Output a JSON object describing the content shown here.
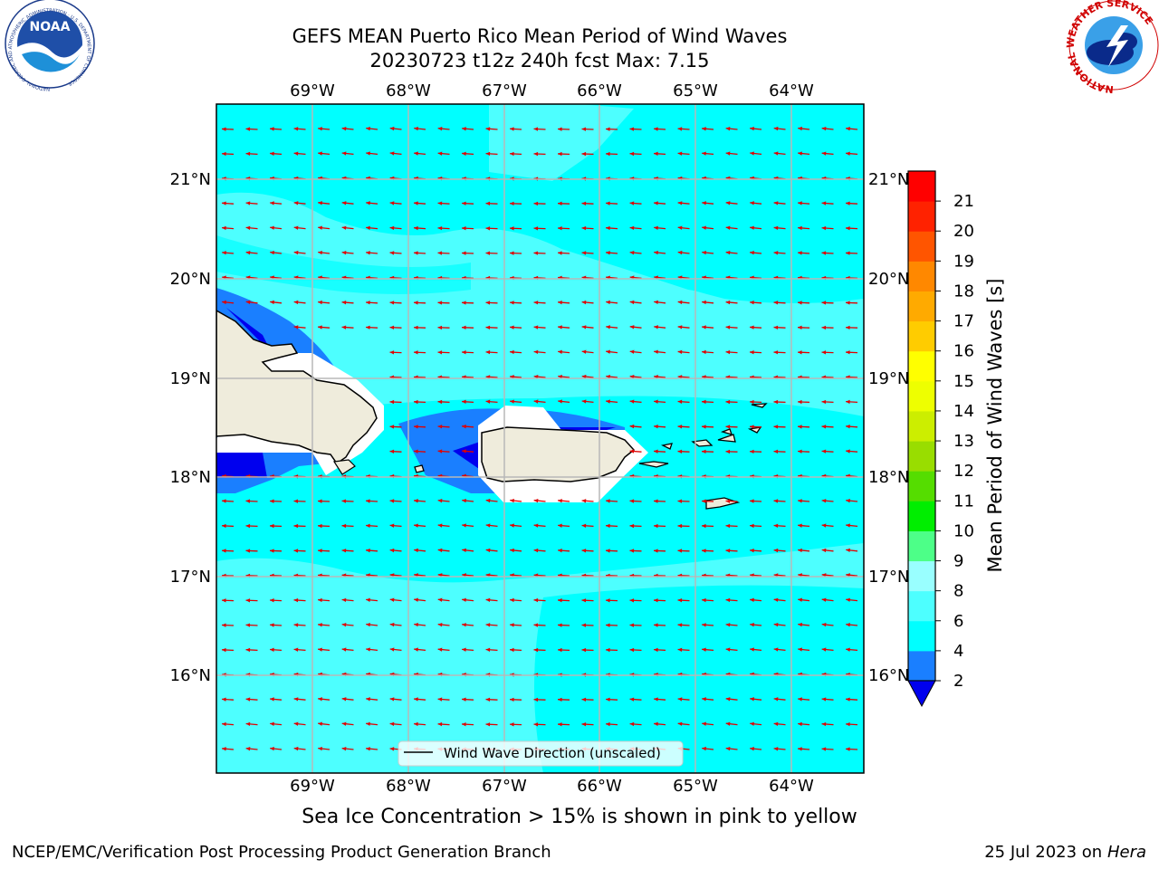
{
  "header": {
    "title_line1": "GEFS MEAN Puerto Rico Mean Period of Wind Waves",
    "title_line2": "20230723 t12z 240h fcst   Max: 7.15"
  },
  "logos": {
    "noaa_text": "NOAA",
    "noaa_ring": "NATIONAL OCEANIC AND ATMOSPHERIC ADMINISTRATION · U.S. DEPARTMENT OF COMMERCE",
    "nws_ring": "NATIONAL WEATHER SERVICE"
  },
  "map": {
    "lon_labels": [
      "69°W",
      "68°W",
      "67°W",
      "66°W",
      "65°W",
      "64°W"
    ],
    "lat_labels": [
      "21°N",
      "20°N",
      "19°N",
      "18°N",
      "17°N",
      "16°N"
    ],
    "legend_label": "Wind Wave Direction (unscaled)",
    "arrow_color": "#e00000",
    "land_color": "#efecdc",
    "sea_colors": {
      "c4_6": "#00ffff",
      "c6_8": "#4dffff",
      "c2_4": "#1a7fff",
      "c_lt2": "#0000ee"
    }
  },
  "colorbar": {
    "label": "Mean Period of Wind Waves [s]",
    "ticks": [
      "2",
      "4",
      "6",
      "8",
      "9",
      "10",
      "11",
      "12",
      "13",
      "14",
      "15",
      "16",
      "17",
      "18",
      "19",
      "20",
      "21"
    ],
    "colors": [
      "#1a7fff",
      "#00ffff",
      "#4dffff",
      "#99ffff",
      "#4dff88",
      "#00ee00",
      "#55dd00",
      "#99dd00",
      "#ccee00",
      "#eeff00",
      "#ffff00",
      "#ffcc00",
      "#ffaa00",
      "#ff8800",
      "#ff5500",
      "#ff2200",
      "#ff0000"
    ],
    "under_color": "#0000ee"
  },
  "note": "Sea Ice Concentration > 15% is shown in pink to yellow",
  "footer": {
    "left": "NCEP/EMC/Verification Post Processing Product Generation Branch",
    "date": "25 Jul 2023 on ",
    "machine": "Hera"
  }
}
